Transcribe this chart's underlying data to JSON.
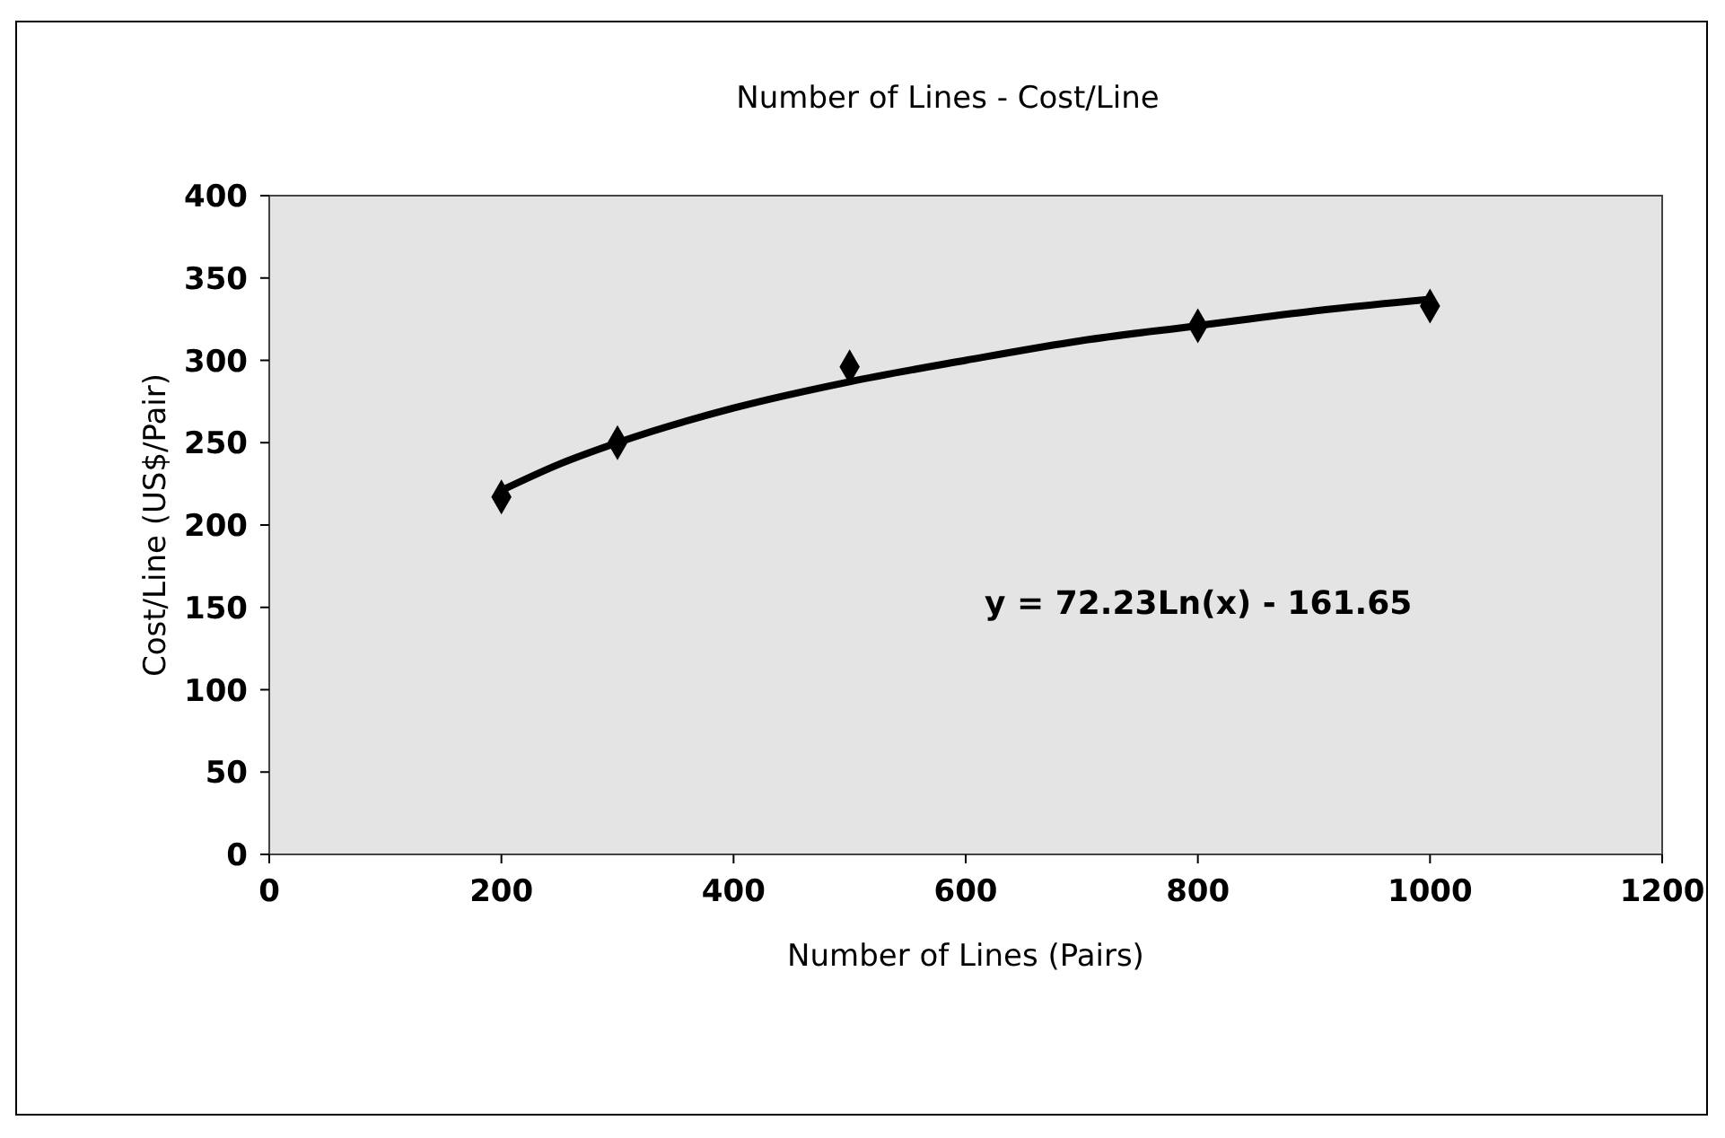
{
  "chart_data": {
    "type": "scatter",
    "title": "Number of Lines - Cost/Line",
    "xlabel": "Number of Lines (Pairs)",
    "ylabel": "Cost/Line (US$/Pair)",
    "xlim": [
      0,
      1200
    ],
    "xticks": [
      0,
      200,
      400,
      600,
      800,
      1000,
      1200
    ],
    "ylim": [
      0,
      400
    ],
    "yticks": [
      0,
      50,
      100,
      150,
      200,
      250,
      300,
      350,
      400
    ],
    "marker": "diamond",
    "grid": false,
    "annotations": [
      "y = 72.23Ln(x) - 161.65"
    ],
    "series": [
      {
        "color": "#000000",
        "x": [
          200,
          300,
          500,
          800,
          1000
        ],
        "values": [
          217,
          250,
          296,
          321,
          333
        ]
      },
      {
        "type": "line",
        "color": "#000000",
        "marker": "none",
        "x": [
          200,
          250,
          300,
          400,
          500,
          600,
          700,
          800,
          900,
          1000
        ],
        "values": [
          221,
          237,
          250,
          271,
          287,
          300,
          312,
          321,
          330,
          337
        ]
      }
    ]
  }
}
